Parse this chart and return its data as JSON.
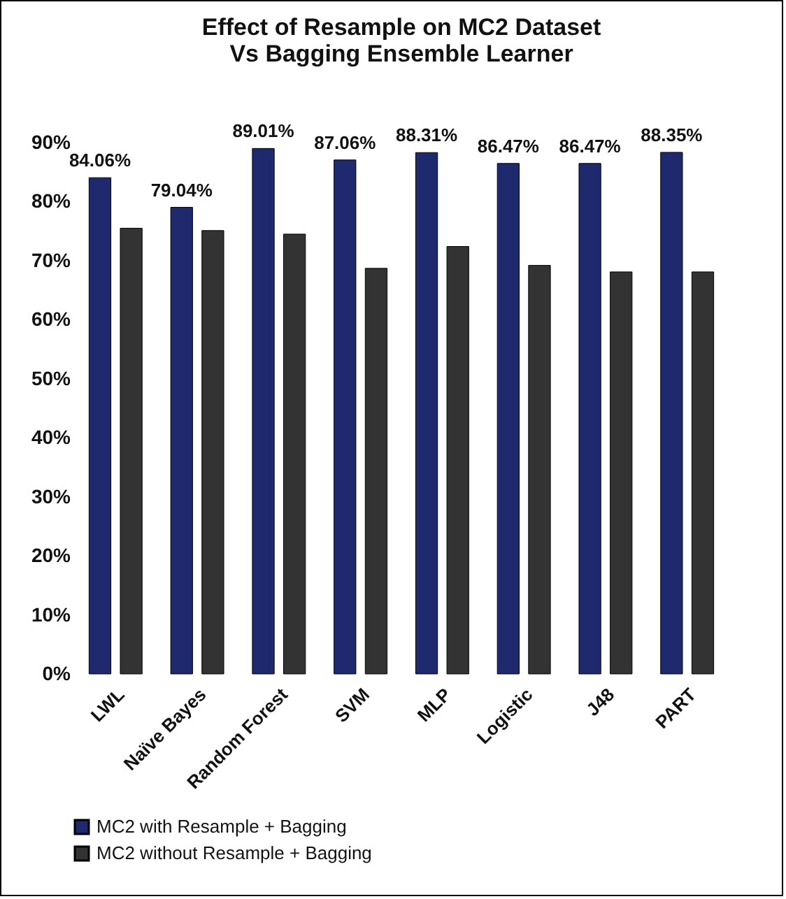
{
  "chart_data": {
    "type": "bar",
    "title": "Effect of Resample on MC2 Dataset Vs Bagging Ensemble Learner",
    "categories": [
      "LWL",
      "Naïve Bayes",
      "Random Forest",
      "SVM",
      "MLP",
      "Logistic",
      "J48",
      "PART"
    ],
    "series": [
      {
        "name": "MC2 with Resample + Bagging",
        "color": "#1f2a6e",
        "values": [
          84.06,
          79.04,
          89.01,
          87.06,
          88.31,
          86.47,
          86.47,
          88.35
        ],
        "value_labels": [
          "84.06%",
          "79.04%",
          "89.01%",
          "87.06%",
          "88.31%",
          "86.47%",
          "86.47%",
          "88.35%"
        ]
      },
      {
        "name": "MC2  without Resample + Bagging",
        "color": "#333333",
        "values": [
          75.5,
          75.1,
          74.5,
          68.7,
          72.4,
          69.2,
          68.1,
          68.1
        ]
      }
    ],
    "ylim": [
      0,
      90
    ],
    "yticks": [
      {
        "value": 0,
        "label": "0%"
      },
      {
        "value": 10,
        "label": "10%"
      },
      {
        "value": 20,
        "label": "20%"
      },
      {
        "value": 30,
        "label": "30%"
      },
      {
        "value": 40,
        "label": "40%"
      },
      {
        "value": 50,
        "label": "50%"
      },
      {
        "value": 60,
        "label": "60%"
      },
      {
        "value": 70,
        "label": "70%"
      },
      {
        "value": 80,
        "label": "80%"
      },
      {
        "value": 90,
        "label": "90%"
      }
    ],
    "legend": "bottom"
  }
}
